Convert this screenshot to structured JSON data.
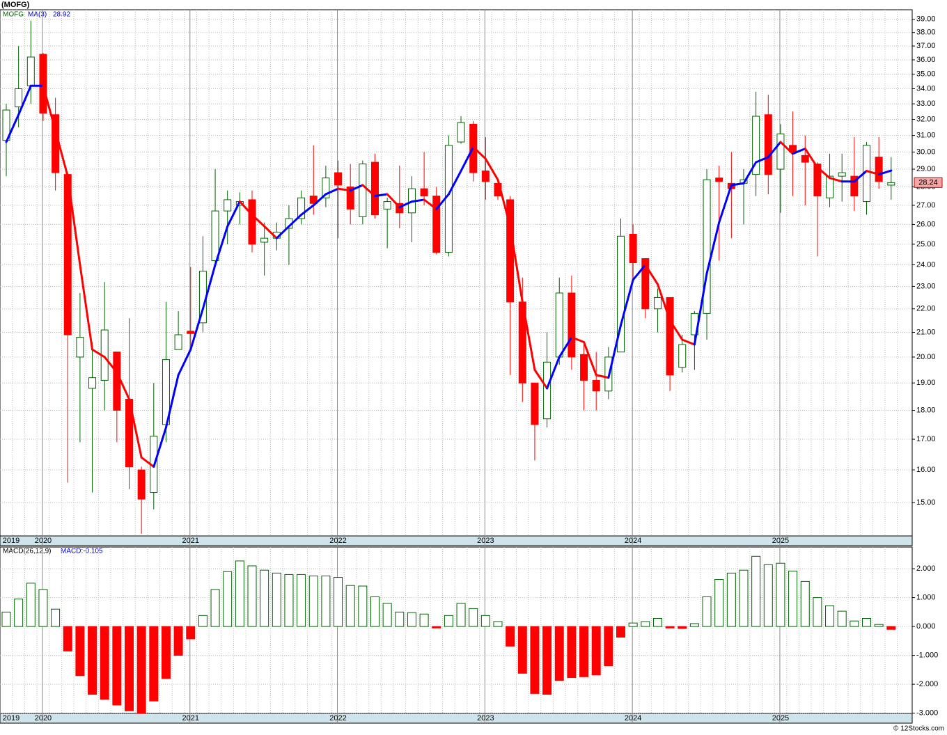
{
  "chart_data": [
    {
      "type": "candlestick",
      "title": "(MOFG)",
      "symbol": "MOFG",
      "log_scale": true,
      "grid": true,
      "up_color": "#006400",
      "down_color": "#ff0000",
      "categories": [
        "2019",
        null,
        null,
        "2020",
        null,
        null,
        null,
        null,
        null,
        null,
        null,
        null,
        null,
        null,
        null,
        "2021",
        null,
        null,
        null,
        null,
        null,
        null,
        null,
        null,
        null,
        null,
        null,
        "2022",
        null,
        null,
        null,
        null,
        null,
        null,
        null,
        null,
        null,
        null,
        null,
        "2023",
        null,
        null,
        null,
        null,
        null,
        null,
        null,
        null,
        null,
        null,
        null,
        "2024",
        null,
        null,
        null,
        null,
        null,
        null,
        null,
        null,
        null,
        null,
        null,
        "2025",
        null,
        null,
        null,
        null,
        null,
        null,
        null,
        null,
        null
      ],
      "open": [
        30.7,
        32.8,
        34.2,
        36.4,
        32.3,
        28.7,
        20.0,
        18.8,
        19.1,
        20.2,
        18.4,
        16.0,
        15.3,
        17.5,
        20.3,
        21.05,
        21.4,
        24.2,
        26.7,
        27.0,
        27.3,
        25.1,
        25.3,
        25.8,
        26.3,
        27.5,
        27.4,
        28.8,
        28.0,
        26.4,
        29.4,
        26.8,
        27.1,
        26.6,
        27.9,
        27.5,
        24.6,
        30.6,
        31.7,
        28.9,
        28.2,
        27.3,
        22.3,
        19.0,
        17.7,
        20.0,
        22.7,
        20.1,
        19.1,
        18.7,
        20.2,
        25.5,
        24.3,
        22.0,
        22.5,
        19.6,
        20.9,
        21.8,
        28.5,
        28.2,
        28.2,
        28.7,
        32.3,
        29.0,
        30.4,
        29.8,
        29.3,
        27.4,
        28.6,
        28.6,
        27.2,
        29.7,
        28.1
      ],
      "high": [
        33.0,
        37.0,
        38.9,
        36.5,
        33.4,
        28.8,
        22.7,
        20.6,
        23.2,
        20.2,
        21.6,
        16.1,
        19.0,
        22.3,
        21.9,
        23.9,
        25.4,
        29.0,
        27.8,
        27.7,
        27.8,
        26.1,
        26.1,
        27.0,
        27.8,
        30.4,
        29.2,
        29.5,
        29.3,
        29.5,
        29.9,
        27.4,
        29.2,
        28.6,
        30.0,
        28.0,
        31.0,
        32.2,
        31.9,
        30.9,
        28.3,
        27.5,
        23.4,
        19.0,
        21.0,
        23.4,
        23.5,
        20.5,
        20.2,
        20.4,
        26.3,
        26.0,
        24.3,
        22.9,
        22.5,
        20.9,
        21.9,
        29.0,
        29.2,
        30.0,
        29.0,
        33.8,
        33.6,
        31.7,
        32.5,
        31.0,
        29.4,
        29.9,
        29.9,
        30.9,
        30.6,
        30.9,
        29.7
      ],
      "low": [
        28.6,
        31.5,
        33.0,
        31.9,
        27.8,
        15.6,
        16.9,
        15.3,
        18.0,
        16.9,
        15.4,
        14.1,
        14.8,
        16.9,
        20.3,
        20.2,
        21.0,
        24.0,
        25.0,
        26.0,
        24.6,
        23.5,
        24.7,
        24.0,
        26.0,
        26.5,
        26.9,
        25.3,
        26.0,
        26.0,
        26.3,
        24.8,
        25.8,
        25.1,
        27.0,
        24.5,
        24.4,
        30.5,
        28.3,
        27.3,
        27.3,
        19.3,
        18.3,
        16.3,
        17.4,
        19.7,
        19.5,
        18.0,
        18.0,
        18.4,
        20.2,
        23.3,
        21.6,
        21.0,
        18.7,
        19.4,
        19.5,
        20.7,
        24.2,
        25.3,
        26.0,
        27.5,
        27.6,
        26.6,
        27.5,
        27.0,
        24.4,
        26.9,
        27.2,
        26.7,
        26.5,
        27.9,
        27.3
      ],
      "close": [
        32.6,
        34.0,
        36.2,
        32.4,
        28.8,
        20.9,
        20.8,
        19.2,
        21.1,
        18.0,
        16.1,
        15.1,
        17.1,
        19.9,
        20.9,
        20.95,
        23.7,
        26.7,
        27.3,
        27.2,
        25.0,
        25.3,
        25.6,
        26.3,
        27.4,
        27.1,
        28.5,
        28.1,
        26.8,
        29.3,
        26.5,
        27.2,
        26.6,
        27.9,
        27.5,
        24.6,
        30.4,
        31.8,
        28.8,
        28.3,
        27.5,
        22.3,
        19.0,
        17.5,
        19.8,
        22.7,
        20.0,
        19.1,
        18.7,
        20.0,
        25.4,
        24.1,
        22.0,
        22.5,
        19.3,
        20.5,
        21.8,
        28.4,
        28.3,
        27.9,
        28.4,
        32.2,
        28.7,
        31.1,
        30.0,
        29.4,
        27.5,
        28.6,
        28.8,
        27.5,
        30.4,
        28.3,
        28.24
      ],
      "series": [
        {
          "name": "MA(3)",
          "up_color": "#0000ff",
          "down_color": "#ff0000",
          "values": [
            30.6,
            32.3,
            34.2,
            34.2,
            31.3,
            28.6,
            24.0,
            20.3,
            20.0,
            19.4,
            18.4,
            16.4,
            16.1,
            17.4,
            19.3,
            20.3,
            22.0,
            24.0,
            25.9,
            27.2,
            26.5,
            25.9,
            25.3,
            25.9,
            26.5,
            27.0,
            27.6,
            27.9,
            27.8,
            28.1,
            27.5,
            27.6,
            26.9,
            27.2,
            27.3,
            26.8,
            27.6,
            28.9,
            30.3,
            29.6,
            28.4,
            25.9,
            22.3,
            19.5,
            18.8,
            20.0,
            20.8,
            20.6,
            19.3,
            19.2,
            21.3,
            23.3,
            24.0,
            23.1,
            21.5,
            20.7,
            20.5,
            23.6,
            26.1,
            28.1,
            28.2,
            29.4,
            29.7,
            30.6,
            29.9,
            30.2,
            29.1,
            28.5,
            28.3,
            28.3,
            28.9,
            28.7,
            28.92
          ]
        }
      ],
      "ylim": [
        14.04,
        39.75
      ],
      "yticks": [
        {
          "value": 15,
          "label": "15.00"
        },
        {
          "value": 16,
          "label": "16.00"
        },
        {
          "value": 17,
          "label": "17.00"
        },
        {
          "value": 18,
          "label": "18.00"
        },
        {
          "value": 19,
          "label": "19.00"
        },
        {
          "value": 20,
          "label": "20.00"
        },
        {
          "value": 21,
          "label": "21.00"
        },
        {
          "value": 22,
          "label": "22.00"
        },
        {
          "value": 23,
          "label": "23.00"
        },
        {
          "value": 24,
          "label": "24.00"
        },
        {
          "value": 25,
          "label": "25.00"
        },
        {
          "value": 26,
          "label": "26.00"
        },
        {
          "value": 27,
          "label": "27.00"
        },
        {
          "value": 28,
          "label": "28.00"
        },
        {
          "value": 29,
          "label": "29.00"
        },
        {
          "value": 30,
          "label": "30.00"
        },
        {
          "value": 31,
          "label": "31.00"
        },
        {
          "value": 32,
          "label": "32.00"
        },
        {
          "value": 33,
          "label": "33.00"
        },
        {
          "value": 34,
          "label": "34.00"
        },
        {
          "value": 35,
          "label": "35.00"
        },
        {
          "value": 36,
          "label": "36.00"
        },
        {
          "value": 37,
          "label": "37.00"
        },
        {
          "value": 38,
          "label": "38.00"
        },
        {
          "value": 39,
          "label": "39.00"
        }
      ]
    },
    {
      "type": "bar",
      "title": "MACD(26,12,9)",
      "legend_text": "MACD:-0.105",
      "grid": true,
      "up_color": "#006400",
      "down_color": "#ff0000",
      "categories": [
        "2019",
        null,
        null,
        "2020",
        null,
        null,
        null,
        null,
        null,
        null,
        null,
        null,
        null,
        null,
        null,
        "2021",
        null,
        null,
        null,
        null,
        null,
        null,
        null,
        null,
        null,
        null,
        null,
        "2022",
        null,
        null,
        null,
        null,
        null,
        null,
        null,
        null,
        null,
        null,
        null,
        "2023",
        null,
        null,
        null,
        null,
        null,
        null,
        null,
        null,
        null,
        null,
        null,
        "2024",
        null,
        null,
        null,
        null,
        null,
        null,
        null,
        null,
        null,
        null,
        null,
        "2025",
        null,
        null,
        null,
        null,
        null,
        null,
        null,
        null,
        null
      ],
      "values": [
        0.5,
        0.95,
        1.5,
        1.28,
        0.6,
        -0.85,
        -1.7,
        -2.35,
        -2.52,
        -2.72,
        -2.92,
        -3.0,
        -2.58,
        -1.8,
        -1.0,
        -0.43,
        0.38,
        1.28,
        1.9,
        2.27,
        2.1,
        1.95,
        1.85,
        1.8,
        1.8,
        1.75,
        1.75,
        1.7,
        1.42,
        1.4,
        1.03,
        0.8,
        0.5,
        0.48,
        0.43,
        -0.05,
        0.38,
        0.8,
        0.62,
        0.38,
        0.17,
        -0.68,
        -1.62,
        -2.32,
        -2.35,
        -1.87,
        -1.77,
        -1.74,
        -1.68,
        -1.36,
        -0.37,
        0.12,
        0.17,
        0.28,
        -0.05,
        -0.07,
        0.1,
        1.03,
        1.63,
        1.85,
        1.95,
        2.43,
        2.14,
        2.19,
        1.92,
        1.56,
        1.0,
        0.72,
        0.53,
        0.19,
        0.28,
        0.07,
        -0.1
      ],
      "ylim": [
        -3.01,
        2.75
      ],
      "yticks": [
        {
          "value": 2,
          "label": "2.000"
        },
        {
          "value": 1,
          "label": "1.000"
        },
        {
          "value": 0,
          "label": "0.000"
        },
        {
          "value": -1,
          "label": "-1.000"
        },
        {
          "value": -2,
          "label": "-2.000"
        },
        {
          "value": -3,
          "label": "-3.000"
        }
      ]
    }
  ],
  "footer": "© 12Stocks.com"
}
